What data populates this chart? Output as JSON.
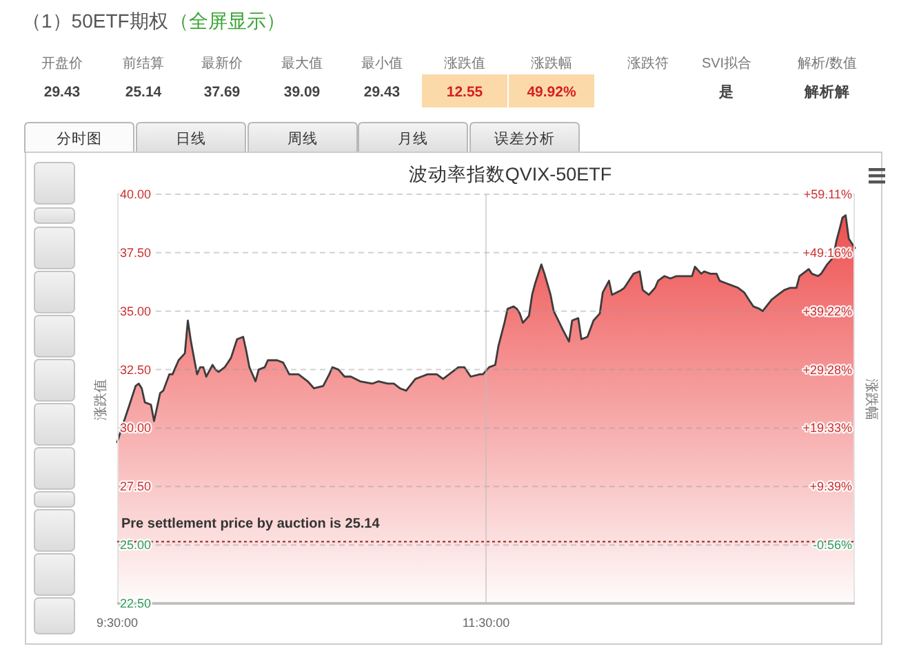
{
  "chart_data": {
    "type": "area",
    "title": "波动率指数QVIX-50ETF",
    "ylabel": "涨跌值",
    "y2label": "涨跌幅",
    "xlim": [
      9.5,
      13.5
    ],
    "xticks": [
      {
        "value": 9.5,
        "label": "9:30:00"
      },
      {
        "value": 11.5,
        "label": "11:30:00"
      }
    ],
    "ylim": [
      22.5,
      40
    ],
    "yticks": [
      {
        "value": 22.5,
        "label": "22.50"
      },
      {
        "value": 25,
        "label": "25.00"
      },
      {
        "value": 27.5,
        "label": "27.50"
      },
      {
        "value": 30,
        "label": "30.00"
      },
      {
        "value": 32.5,
        "label": "32.50"
      },
      {
        "value": 35,
        "label": "35.00"
      },
      {
        "value": 37.5,
        "label": "37.50"
      },
      {
        "value": 40,
        "label": "40.00"
      }
    ],
    "y2lim": [
      -10.5,
      59.11
    ],
    "y2ticks": [
      {
        "value": -0.56,
        "label": "-0.56%"
      },
      {
        "value": 9.39,
        "label": "+9.39%"
      },
      {
        "value": 19.33,
        "label": "+19.33%"
      },
      {
        "value": 29.28,
        "label": "+29.28%"
      },
      {
        "value": 39.22,
        "label": "+39.22%"
      },
      {
        "value": 49.16,
        "label": "+49.16%"
      },
      {
        "value": 59.11,
        "label": "+59.11%"
      }
    ],
    "grid": "y",
    "ref_lines": [
      {
        "axis": "y",
        "value": 25.14,
        "label": "Pre settlement price by auction is 25.14",
        "color": "#a03030",
        "line_style": "dotted"
      },
      {
        "axis": "x",
        "value": 11.5,
        "color": "#bdbdbd",
        "line_style": "solid"
      }
    ],
    "series": [
      {
        "color": "#ee4f4f",
        "x": [
          9.5,
          9.533,
          9.567,
          9.6,
          9.617,
          9.633,
          9.65,
          9.683,
          9.7,
          9.733,
          9.75,
          9.783,
          9.8,
          9.833,
          9.867,
          9.883,
          9.9,
          9.933,
          9.95,
          9.967,
          9.983,
          10.017,
          10.033,
          10.05,
          10.083,
          10.117,
          10.15,
          10.183,
          10.2,
          10.217,
          10.25,
          10.267,
          10.3,
          10.317,
          10.367,
          10.4,
          10.433,
          10.483,
          10.533,
          10.567,
          10.617,
          10.65,
          10.667,
          10.7,
          10.733,
          10.767,
          10.817,
          10.883,
          10.917,
          10.967,
          11.0,
          11.033,
          11.067,
          11.117,
          11.15,
          11.183,
          11.233,
          11.267,
          11.317,
          11.35,
          11.383,
          11.417,
          11.467,
          11.483,
          11.517,
          11.55,
          11.567,
          11.6,
          11.617,
          11.65,
          11.667,
          11.683,
          11.7,
          11.733,
          11.75,
          11.767,
          11.8,
          11.817,
          11.85,
          11.867,
          11.917,
          11.95,
          11.967,
          12.0,
          12.017,
          12.05,
          12.083,
          12.117,
          12.133,
          12.167,
          12.183,
          12.233,
          12.25,
          12.283,
          12.3,
          12.333,
          12.35,
          12.383,
          12.417,
          12.433,
          12.467,
          12.5,
          12.533,
          12.567,
          12.617,
          12.633,
          12.667,
          12.683,
          12.717,
          12.75,
          12.767,
          12.8,
          12.833,
          12.867,
          12.9,
          12.933,
          12.95,
          12.983,
          13.0,
          13.05,
          13.083,
          13.117,
          13.15,
          13.183,
          13.2,
          13.25,
          13.267,
          13.3,
          13.317,
          13.35,
          13.383,
          13.4,
          13.417,
          13.433,
          13.45,
          13.467,
          13.5
        ],
        "values": [
          29.4,
          30.2,
          31.0,
          31.8,
          31.9,
          31.7,
          31.1,
          31.0,
          30.3,
          31.5,
          31.6,
          32.3,
          32.3,
          32.9,
          33.2,
          34.6,
          33.7,
          32.3,
          32.6,
          32.6,
          32.2,
          32.7,
          32.5,
          32.4,
          32.6,
          33.0,
          33.8,
          33.9,
          33.3,
          32.6,
          32.0,
          32.5,
          32.6,
          32.9,
          32.9,
          32.8,
          32.3,
          32.3,
          32.0,
          31.7,
          31.8,
          32.3,
          32.6,
          32.5,
          32.2,
          32.2,
          32.0,
          31.9,
          32.0,
          31.9,
          31.9,
          31.7,
          31.6,
          32.1,
          32.2,
          32.3,
          32.3,
          32.1,
          32.4,
          32.6,
          32.6,
          32.2,
          32.3,
          32.3,
          32.6,
          32.7,
          33.5,
          34.5,
          35.1,
          35.2,
          35.1,
          34.9,
          34.5,
          34.8,
          35.7,
          36.2,
          37.0,
          36.6,
          35.7,
          35.0,
          34.2,
          33.7,
          34.6,
          34.7,
          33.8,
          33.9,
          34.6,
          34.9,
          35.8,
          36.3,
          35.7,
          35.9,
          36.0,
          36.4,
          36.6,
          36.7,
          35.9,
          35.7,
          36.0,
          36.3,
          36.5,
          36.4,
          36.5,
          36.5,
          36.5,
          36.9,
          36.6,
          36.7,
          36.6,
          36.6,
          36.3,
          36.2,
          36.1,
          36.0,
          35.8,
          35.4,
          35.2,
          35.1,
          35.0,
          35.5,
          35.7,
          35.9,
          36.0,
          36.0,
          36.5,
          36.8,
          36.6,
          36.5,
          36.6,
          37.0,
          37.3,
          38.0,
          38.5,
          39.0,
          39.1,
          38.1,
          37.7
        ]
      }
    ],
    "annotations": [
      "（1）50ETF期权",
      "（全屏显示）",
      "开盘价",
      "前结算",
      "最新价",
      "最大值",
      "最小值",
      "涨跌值",
      "涨跌幅",
      "涨跌符",
      "SVI拟合",
      "解析/数值",
      "29.43",
      "25.14",
      "37.69",
      "39.09",
      "29.43",
      "12.55",
      "49.92%",
      null,
      "是",
      "解析解",
      "分时图",
      "日线",
      "周线",
      "月线",
      "误差分析"
    ]
  }
}
